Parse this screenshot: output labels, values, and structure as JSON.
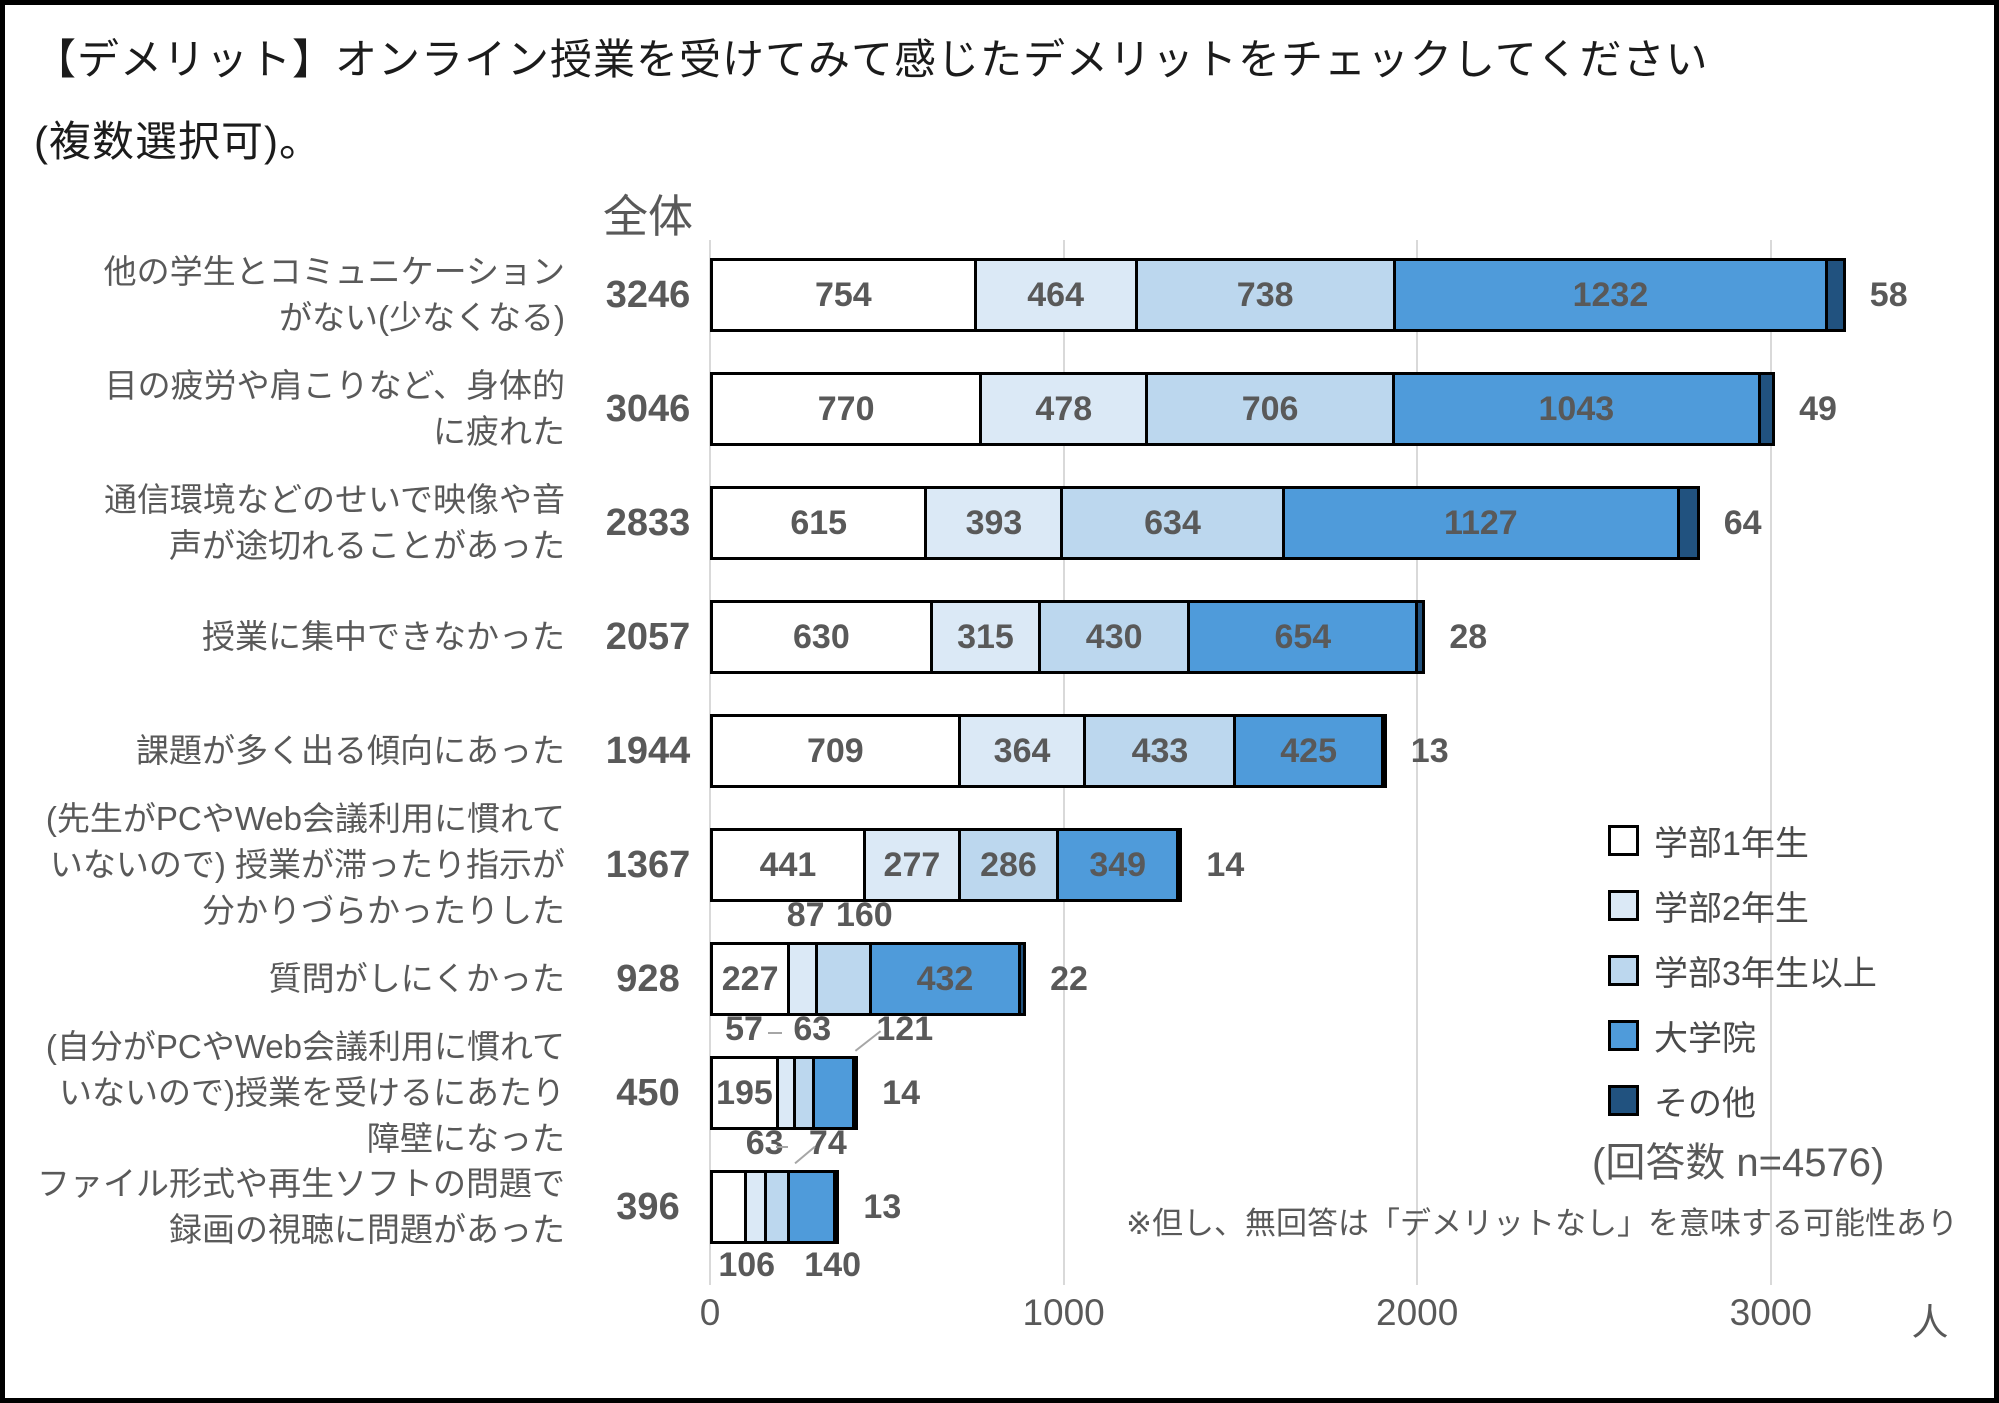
{
  "chart_data": {
    "type": "bar",
    "orientation": "horizontal",
    "stacked": true,
    "title_lines": [
      "【デメリット】オンライン授業を受けてみて感じたデメリットをチェックしてください",
      "(複数選択可)。"
    ],
    "title": "【デメリット】オンライン授業を受けてみて感じたデメリットをチェックしてください(複数選択可)。",
    "total_header": "全体",
    "series_names": [
      "学部1年生",
      "学部2年生",
      "学部3年生以上",
      "大学院",
      "その他"
    ],
    "colors": [
      "#ffffff",
      "#dbe9f6",
      "#bcd7ee",
      "#4f9bda",
      "#21527f"
    ],
    "xlim": [
      0,
      3493
    ],
    "tick_labels": [
      "0",
      "1000",
      "2000",
      "3000"
    ],
    "tick_values": [
      0,
      1000,
      2000,
      3000
    ],
    "unit": "人",
    "grid": true,
    "legend_position": "right",
    "note": "(回答数 n=4576)",
    "footnote": "※但し、無回答は「デメリットなし」を意味する可能性あり",
    "rows": [
      {
        "label": "他の学生とコミュニケーションがない(少なくなる)",
        "label_lines": [
          "他の学生とコミュニケーション",
          "がない(少なくなる)"
        ],
        "total": 3246,
        "values": [
          754,
          464,
          738,
          1232,
          58
        ],
        "label_pos": [
          "in",
          "in",
          "in",
          "in",
          "right"
        ]
      },
      {
        "label": "目の疲労や肩こりなど、身体的に疲れた",
        "label_lines": [
          "目の疲労や肩こりなど、身体的",
          "に疲れた"
        ],
        "total": 3046,
        "values": [
          770,
          478,
          706,
          1043,
          49
        ],
        "label_pos": [
          "in",
          "in",
          "in",
          "in",
          "right"
        ]
      },
      {
        "label": "通信環境などのせいで映像や音声が途切れることがあった",
        "label_lines": [
          "通信環境などのせいで映像や音",
          "声が途切れることがあった"
        ],
        "total": 2833,
        "values": [
          615,
          393,
          634,
          1127,
          64
        ],
        "label_pos": [
          "in",
          "in",
          "in",
          "in",
          "right"
        ]
      },
      {
        "label": "授業に集中できなかった",
        "label_lines": [
          "授業に集中できなかった"
        ],
        "total": 2057,
        "values": [
          630,
          315,
          430,
          654,
          28
        ],
        "label_pos": [
          "in",
          "in",
          "in",
          "in",
          "right"
        ]
      },
      {
        "label": "課題が多く出る傾向にあった",
        "label_lines": [
          "課題が多く出る傾向にあった"
        ],
        "total": 1944,
        "values": [
          709,
          364,
          433,
          425,
          13
        ],
        "label_pos": [
          "in",
          "in",
          "in",
          "in",
          "right"
        ]
      },
      {
        "label": "(先生がPCやWeb会議利用に慣れていないので) 授業が滞ったり指示が分かりづらかったりした",
        "label_lines": [
          "(先生がPCやWeb会議利用に慣れて",
          "いないので) 授業が滞ったり指示が",
          "分かりづらかったりした"
        ],
        "total": 1367,
        "values": [
          441,
          277,
          286,
          349,
          14
        ],
        "label_pos": [
          "in",
          "in",
          "in",
          "in",
          "right"
        ]
      },
      {
        "label": "質問がしにくかった",
        "label_lines": [
          "質問がしにくかった"
        ],
        "total": 928,
        "values": [
          227,
          87,
          160,
          432,
          22
        ],
        "label_pos": [
          "in",
          "above",
          "above",
          "in",
          "right"
        ]
      },
      {
        "label": "(自分がPCやWeb会議利用に慣れていないので)授業を受けるにあたり障壁になった",
        "label_lines": [
          "(自分がPCやWeb会議利用に慣れて",
          "いないので)授業を受けるにあたり",
          "障壁になった"
        ],
        "total": 450,
        "values": [
          195,
          57,
          63,
          121,
          14
        ],
        "label_pos": [
          "in",
          "above",
          "above",
          "above",
          "right"
        ]
      },
      {
        "label": "ファイル形式や再生ソフトの問題で録画の視聴に問題があった",
        "label_lines": [
          "ファイル形式や再生ソフトの問題で",
          "録画の視聴に問題があった"
        ],
        "total": 396,
        "values": [
          106,
          63,
          74,
          140,
          13
        ],
        "label_pos": [
          "below",
          "above",
          "above",
          "below",
          "right"
        ]
      }
    ]
  }
}
